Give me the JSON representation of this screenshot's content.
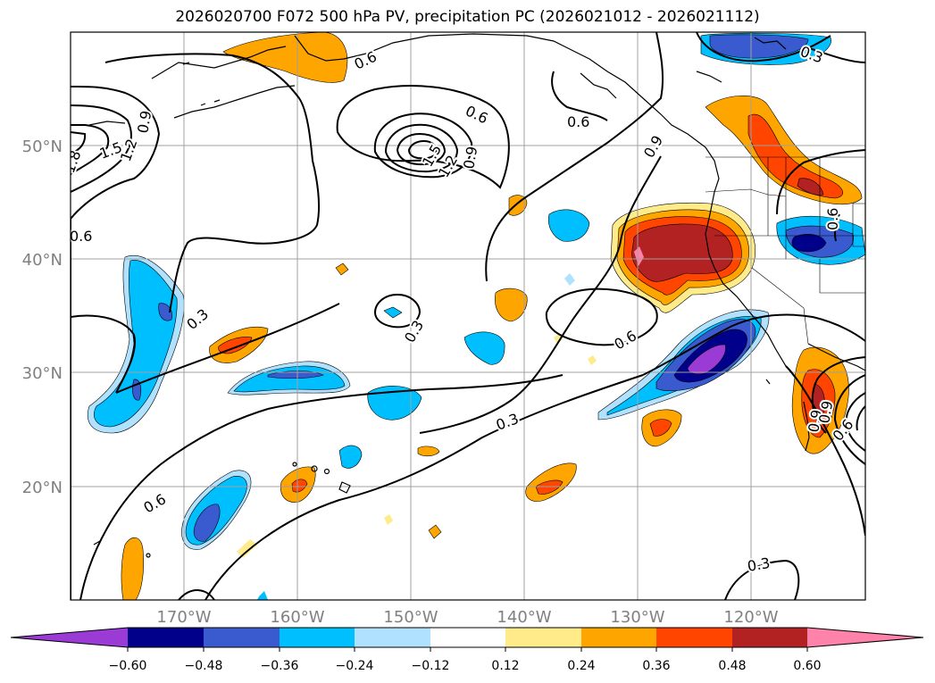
{
  "title": "2026020700 F072 500 hPa PV, precipitation PC (2026021012 - 2026021112)",
  "map": {
    "lat_labels": [
      "50°N",
      "40°N",
      "30°N",
      "20°N"
    ],
    "lon_labels": [
      "170°W",
      "160°W",
      "150°W",
      "140°W",
      "130°W",
      "120°W"
    ],
    "lon_range": [
      -180,
      -110
    ],
    "lat_range": [
      10,
      60
    ],
    "gridlines": true
  },
  "contour_labels": [
    "0.6",
    "0.6",
    "1.5",
    "1.2",
    "1.8",
    "0.9",
    "0.6",
    "1.5",
    "1.2",
    "0.9",
    "0.6",
    "0.9",
    "0.3",
    "0.3",
    "0.6",
    "0.3",
    "0.3",
    "0.6",
    "0.3",
    "0.6",
    "0.9",
    "0.9",
    "0.6"
  ],
  "colorbar": {
    "ticks": [
      "−0.60",
      "−0.48",
      "−0.36",
      "−0.24",
      "−0.12",
      "0.12",
      "0.24",
      "0.36",
      "0.48",
      "0.60"
    ],
    "colors": [
      "#9b3bd6",
      "#00008b",
      "#3a5bd0",
      "#00bfff",
      "#b0e2ff",
      "#ffffff",
      "#ffeb8a",
      "#ffa500",
      "#ff4500",
      "#b22222",
      "#ff82ab"
    ],
    "extend": "both"
  }
}
